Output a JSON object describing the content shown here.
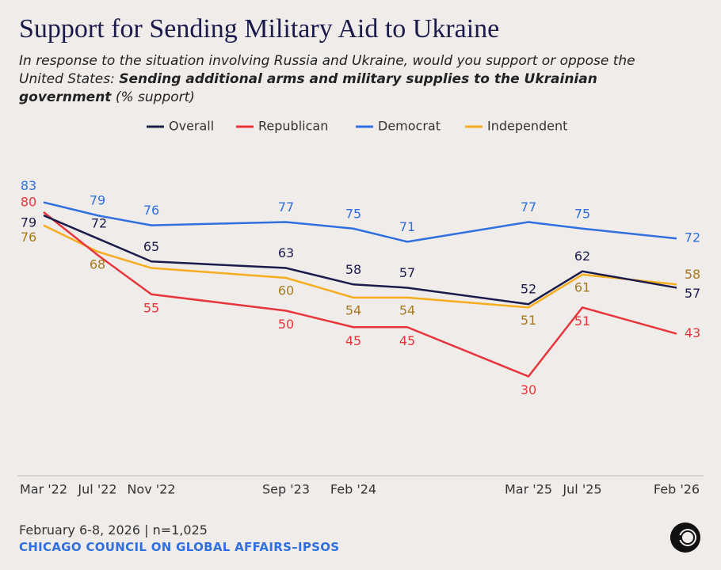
{
  "chart_data": {
    "type": "line",
    "title": "Support for Sending Military Aid to Ukraine",
    "subtitle": {
      "question": "In response to the situation involving Russia and Ukraine, would you support or oppose the United States:",
      "item": "Sending additional arms and military supplies to the Ukrainian government",
      "unit": "(% support)"
    },
    "categories": [
      "Mar '22",
      "Jul '22",
      "Nov '22",
      "Sep '23",
      "Feb '24",
      null,
      "Mar '25",
      "Jul '25",
      "Feb '26"
    ],
    "ylim": [
      0,
      100
    ],
    "series": [
      {
        "name": "Overall",
        "color": "#1b1b4b",
        "values": [
          79,
          72,
          65,
          63,
          58,
          57,
          52,
          62,
          57
        ]
      },
      {
        "name": "Republican",
        "color": "#e8353b",
        "values": [
          80,
          67,
          55,
          50,
          45,
          45,
          30,
          51,
          43
        ],
        "value_labels": [
          "80",
          null,
          "55",
          "50",
          "45",
          "45",
          "30",
          "51",
          "43"
        ]
      },
      {
        "name": "Democrat",
        "color": "#2f6fdf",
        "values": [
          83,
          79,
          76,
          77,
          75,
          71,
          77,
          75,
          72
        ]
      },
      {
        "name": "Independent",
        "color": "#f6ad1f",
        "values": [
          76,
          68,
          63,
          60,
          54,
          54,
          51,
          61,
          58
        ],
        "value_labels": [
          "76",
          "68",
          null,
          "60",
          "54",
          "54",
          "51",
          "61",
          "58"
        ]
      }
    ],
    "note": "February 6-8, 2026 | n=1,025",
    "source": "CHICAGO COUNCIL ON GLOBAL AFFAIRS–IPSOS"
  }
}
